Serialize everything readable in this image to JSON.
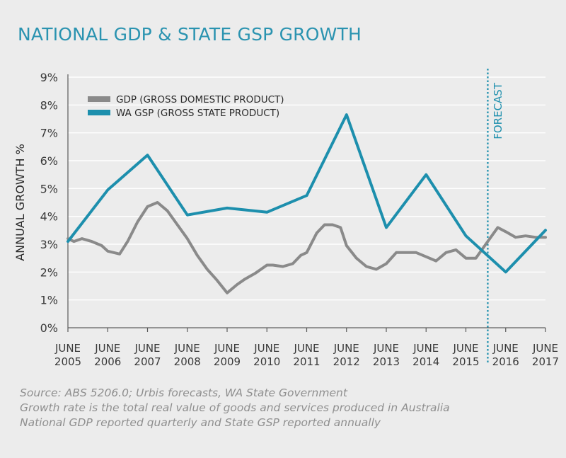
{
  "title": "NATIONAL GDP & STATE GSP GROWTH",
  "chart_data": {
    "type": "line",
    "ylabel": "ANNUAL GROWTH %",
    "ylim": [
      0,
      9
    ],
    "yticks": [
      "0%",
      "1%",
      "2%",
      "3%",
      "4%",
      "5%",
      "6%",
      "7%",
      "8%",
      "9%"
    ],
    "xticks": [
      [
        "JUNE",
        "2005"
      ],
      [
        "JUNE",
        "2006"
      ],
      [
        "JUNE",
        "2007"
      ],
      [
        "JUNE",
        "2008"
      ],
      [
        "JUNE",
        "2009"
      ],
      [
        "JUNE",
        "2010"
      ],
      [
        "JUNE",
        "2011"
      ],
      [
        "JUNE",
        "2012"
      ],
      [
        "JUNE",
        "2013"
      ],
      [
        "JUNE",
        "2014"
      ],
      [
        "JUNE",
        "2015"
      ],
      [
        "JUNE",
        "2016"
      ],
      [
        "JUNE",
        "2017"
      ]
    ],
    "xlim": [
      2005,
      2017
    ],
    "forecast_label": "FORECAST",
    "forecast_x": 2015.55,
    "series": [
      {
        "name": "GDP (GROSS DOMESTIC PRODUCT)",
        "color": "#8a8a8a",
        "x": [
          2005,
          2005.15,
          2005.35,
          2005.6,
          2005.85,
          2006,
          2006.3,
          2006.5,
          2006.75,
          2007,
          2007.25,
          2007.5,
          2007.75,
          2008,
          2008.25,
          2008.5,
          2008.75,
          2009,
          2009.25,
          2009.45,
          2009.7,
          2010,
          2010.15,
          2010.4,
          2010.65,
          2010.85,
          2011,
          2011.25,
          2011.45,
          2011.65,
          2011.85,
          2012,
          2012.25,
          2012.5,
          2012.75,
          2013,
          2013.25,
          2013.5,
          2013.75,
          2014,
          2014.25,
          2014.5,
          2014.75,
          2015,
          2015.25,
          2015.55,
          2015.8,
          2016,
          2016.25,
          2016.5,
          2016.75,
          2017
        ],
        "values": [
          3.2,
          3.1,
          3.2,
          3.1,
          2.95,
          2.75,
          2.65,
          3.1,
          3.8,
          4.35,
          4.5,
          4.2,
          3.7,
          3.2,
          2.6,
          2.1,
          1.7,
          1.25,
          1.55,
          1.75,
          1.95,
          2.25,
          2.25,
          2.2,
          2.3,
          2.6,
          2.7,
          3.4,
          3.7,
          3.7,
          3.6,
          2.95,
          2.5,
          2.2,
          2.1,
          2.3,
          2.7,
          2.7,
          2.7,
          2.55,
          2.4,
          2.7,
          2.8,
          2.5,
          2.5,
          3.1,
          3.6,
          3.45,
          3.25,
          3.3,
          3.25,
          3.25
        ]
      },
      {
        "name": "WA GSP (GROSS STATE PRODUCT)",
        "color": "#1d8fad",
        "x": [
          2005,
          2006,
          2007,
          2008,
          2009,
          2010,
          2011,
          2012,
          2013,
          2014,
          2015,
          2016,
          2017
        ],
        "values": [
          3.1,
          4.95,
          6.2,
          4.05,
          4.3,
          4.15,
          4.75,
          7.65,
          3.6,
          5.5,
          3.3,
          2.0,
          3.5
        ]
      }
    ]
  },
  "notes": [
    "Source: ABS 5206.0; Urbis forecasts, WA State Government",
    "Growth rate is the total real value of goods and services produced in Australia",
    "National GDP reported quarterly and State GSP reported annually"
  ]
}
